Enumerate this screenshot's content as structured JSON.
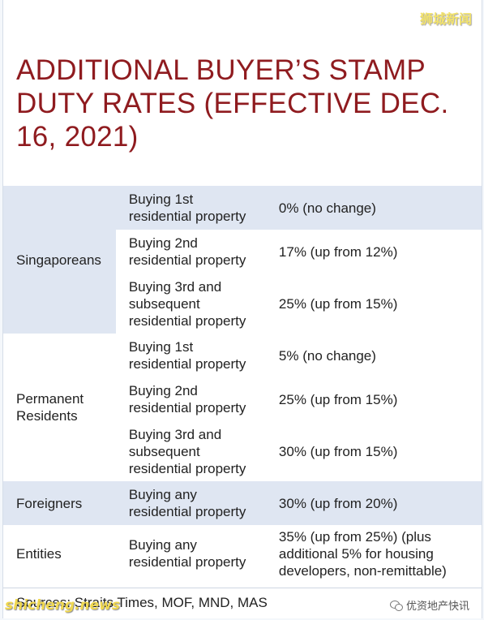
{
  "watermarks": {
    "top_right": "狮城新闻",
    "bottom_left": "shicheng.news",
    "bottom_right": "优资地产快讯"
  },
  "title": "ADDITIONAL BUYER’S STAMP DUTY RATES (EFFECTIVE DEC. 16, 2021)",
  "rates": {
    "singaporeans": {
      "label": "Singaporeans",
      "rows": [
        {
          "purchase": "Buying 1st residential property",
          "rate": "0% (no change)"
        },
        {
          "purchase": "Buying 2nd residential property",
          "rate": "17% (up from 12%)"
        },
        {
          "purchase": "Buying 3rd and subsequent residential property",
          "rate": "25% (up from 15%)"
        }
      ]
    },
    "permanent_residents": {
      "label": "Permanent Residents",
      "rows": [
        {
          "purchase": "Buying 1st residential property",
          "rate": "5% (no change)"
        },
        {
          "purchase": "Buying 2nd residential property",
          "rate": "25% (up from 15%)"
        },
        {
          "purchase": "Buying 3rd and subsequent residential property",
          "rate": "30% (up from 15%)"
        }
      ]
    },
    "foreigners": {
      "label": "Foreigners",
      "purchase": "Buying any residential property",
      "rate": "30% (up from 20%)"
    },
    "entities": {
      "label": "Entities",
      "purchase": "Buying any residential property",
      "rate": "35% (up from 25%) (plus additional 5% for housing developers, non-remittable)"
    }
  },
  "sources": "Sources: Straits Times, MOF, MND, MAS",
  "colors": {
    "title": "#8f1b1f",
    "row_shade": "#dfe6f2"
  }
}
